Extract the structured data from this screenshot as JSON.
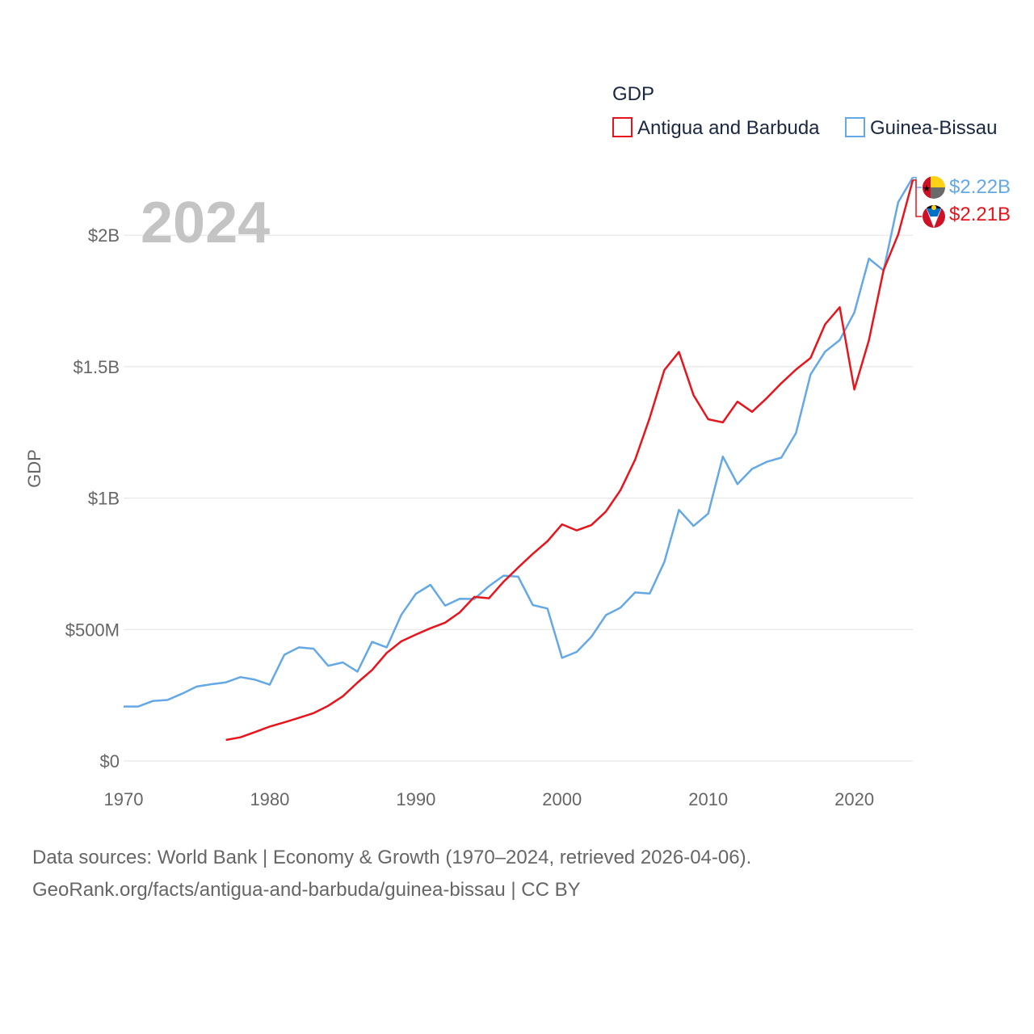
{
  "chart_data": {
    "type": "line",
    "big_label": "2024",
    "ylabel": "GDP",
    "xlabel": "",
    "legend": {
      "title": "GDP",
      "position": "top-right"
    },
    "xlim": [
      1970,
      2024
    ],
    "ylim": [
      0,
      2400000000
    ],
    "x_ticks": [
      1970,
      1980,
      1990,
      2000,
      2010,
      2020
    ],
    "y_ticks": [
      {
        "value": 0,
        "label": "$0"
      },
      {
        "value": 500000000,
        "label": "$500M"
      },
      {
        "value": 1000000000,
        "label": "$1B"
      },
      {
        "value": 1500000000,
        "label": "$1.5B"
      },
      {
        "value": 2000000000,
        "label": "$2B"
      }
    ],
    "grid": true,
    "series": [
      {
        "name": "Antigua and Barbuda",
        "color": "#e8141c",
        "end_label": "$2.21B",
        "flag": "antigua-and-barbuda",
        "x": [
          1977,
          1978,
          1979,
          1980,
          1981,
          1982,
          1983,
          1984,
          1985,
          1986,
          1987,
          1988,
          1989,
          1990,
          1991,
          1992,
          1993,
          1994,
          1995,
          1996,
          1997,
          1998,
          1999,
          2000,
          2001,
          2002,
          2003,
          2004,
          2005,
          2006,
          2007,
          2008,
          2009,
          2010,
          2011,
          2012,
          2013,
          2014,
          2015,
          2016,
          2017,
          2018,
          2019,
          2020,
          2021,
          2022,
          2023,
          2024
        ],
        "values": [
          80000000,
          90000000,
          110000000,
          131000000,
          147000000,
          164000000,
          182000000,
          210000000,
          246000000,
          298000000,
          346000000,
          411000000,
          455000000,
          481000000,
          505000000,
          526000000,
          565000000,
          624000000,
          619000000,
          682000000,
          736000000,
          788000000,
          836000000,
          900000000,
          877000000,
          897000000,
          949000000,
          1030000000,
          1146000000,
          1305000000,
          1487000000,
          1556000000,
          1391000000,
          1300000000,
          1288000000,
          1367000000,
          1328000000,
          1380000000,
          1437000000,
          1489000000,
          1533000000,
          1661000000,
          1726000000,
          1413000000,
          1601000000,
          1867000000,
          2003000000,
          2210000000
        ]
      },
      {
        "name": "Guinea-Bissau",
        "color": "#64a8e6",
        "end_label": "$2.22B",
        "flag": "guinea-bissau",
        "x": [
          1970,
          1971,
          1972,
          1973,
          1974,
          1975,
          1976,
          1977,
          1978,
          1979,
          1980,
          1981,
          1982,
          1983,
          1984,
          1985,
          1986,
          1987,
          1988,
          1989,
          1990,
          1991,
          1992,
          1993,
          1994,
          1995,
          1996,
          1997,
          1998,
          1999,
          2000,
          2001,
          2002,
          2003,
          2004,
          2005,
          2006,
          2007,
          2008,
          2009,
          2010,
          2011,
          2012,
          2013,
          2014,
          2015,
          2016,
          2017,
          2018,
          2019,
          2020,
          2021,
          2022,
          2023,
          2024
        ],
        "values": [
          207000000,
          207000000,
          228000000,
          232000000,
          256000000,
          283000000,
          292000000,
          299000000,
          319000000,
          309000000,
          290000000,
          404000000,
          432000000,
          427000000,
          362000000,
          375000000,
          340000000,
          453000000,
          432000000,
          556000000,
          636000000,
          670000000,
          591000000,
          617000000,
          616000000,
          665000000,
          705000000,
          701000000,
          593000000,
          580000000,
          392000000,
          415000000,
          472000000,
          555000000,
          583000000,
          641000000,
          637000000,
          757000000,
          955000000,
          894000000,
          941000000,
          1158000000,
          1053000000,
          1111000000,
          1138000000,
          1154000000,
          1247000000,
          1470000000,
          1557000000,
          1601000000,
          1706000000,
          1911000000,
          1866000000,
          2126000000,
          2220000000
        ]
      }
    ]
  },
  "footer": {
    "line1": "Data sources: World Bank | Economy & Growth (1970–2024, retrieved 2026-04-06).",
    "line2": "GeoRank.org/facts/antigua-and-barbuda/guinea-bissau | CC BY"
  }
}
